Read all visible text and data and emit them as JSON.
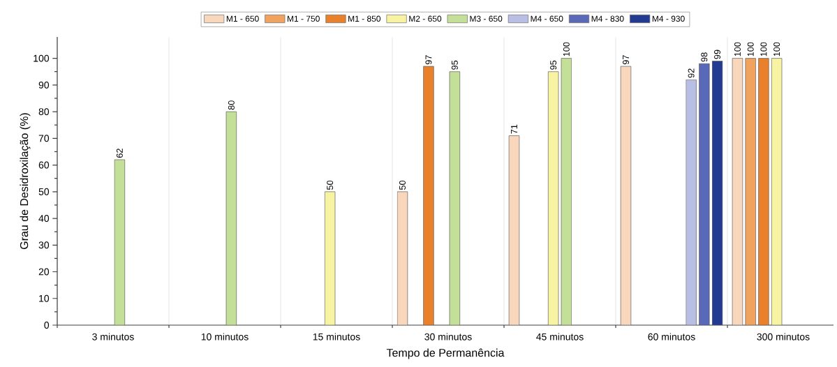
{
  "chart_data": {
    "type": "bar",
    "xlabel": "Tempo de Permanência",
    "ylabel": "Grau de Desidroxilação (%)",
    "categories": [
      "3 minutos",
      "10 minutos",
      "15 minutos",
      "30 minutos",
      "45 minutos",
      "60 minutos",
      "300 minutos"
    ],
    "series": [
      {
        "name": "M1 - 650",
        "color": "#f9d7bc",
        "values": [
          null,
          null,
          null,
          50,
          71,
          97,
          100
        ]
      },
      {
        "name": "M1 - 750",
        "color": "#f0a25f",
        "values": [
          null,
          null,
          null,
          null,
          null,
          null,
          100
        ]
      },
      {
        "name": "M1 - 850",
        "color": "#e8802c",
        "values": [
          null,
          null,
          null,
          97,
          null,
          null,
          100
        ]
      },
      {
        "name": "M2 - 650",
        "color": "#f7f3a2",
        "values": [
          null,
          null,
          50,
          null,
          95,
          null,
          100
        ]
      },
      {
        "name": "M3 - 650",
        "color": "#c4df98",
        "values": [
          62,
          80,
          null,
          95,
          100,
          null,
          null
        ]
      },
      {
        "name": "M4 - 650",
        "color": "#b9bfe4",
        "values": [
          null,
          null,
          null,
          null,
          null,
          92,
          null
        ]
      },
      {
        "name": "M4 - 830",
        "color": "#5a68b8",
        "values": [
          null,
          null,
          null,
          null,
          null,
          98,
          null
        ]
      },
      {
        "name": "M4 - 930",
        "color": "#233a92",
        "values": [
          null,
          null,
          null,
          null,
          null,
          99,
          null
        ]
      }
    ],
    "ylim": [
      0,
      108
    ],
    "yticks": [
      0,
      10,
      20,
      30,
      40,
      50,
      60,
      70,
      80,
      90,
      100
    ],
    "grid": "x",
    "legend": "top",
    "data_labels": true
  }
}
